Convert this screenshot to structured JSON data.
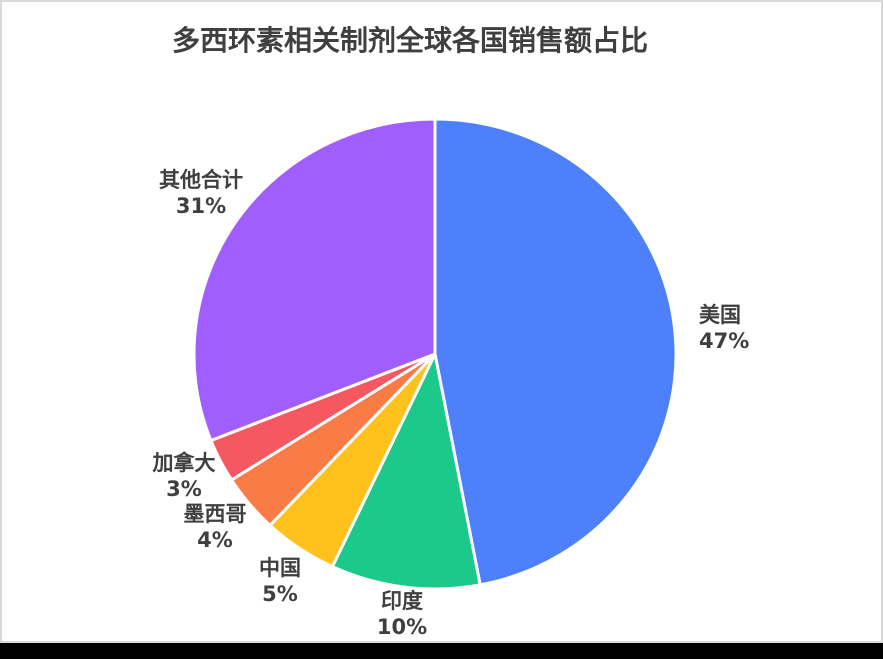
{
  "title": "多西环素相关制剂全球各国销售额占比",
  "colors": {
    "title_text": "#3f3f3f",
    "label_text": "#3f3f3f",
    "card_border": "#d9d9d9",
    "bottom_bar": "#000000",
    "background": "#ffffff",
    "slice_gap": "#ffffff"
  },
  "chart_data": {
    "type": "pie",
    "title": "多西环素相关制剂全球各国销售额占比",
    "direction": "clockwise",
    "start_angle_deg": 0,
    "legend_position": "none",
    "labels_position": "outside",
    "total": 100,
    "series": [
      {
        "name": "美国",
        "value": 47,
        "percent_label": "47%",
        "color": "#4d80fa"
      },
      {
        "name": "印度",
        "value": 10,
        "percent_label": "10%",
        "color": "#1bc98a"
      },
      {
        "name": "中国",
        "value": 5,
        "percent_label": "5%",
        "color": "#ffc21c"
      },
      {
        "name": "墨西哥",
        "value": 4,
        "percent_label": "4%",
        "color": "#f97b45"
      },
      {
        "name": "加拿大",
        "value": 3,
        "percent_label": "3%",
        "color": "#f65861"
      },
      {
        "name": "其他合计",
        "value": 31,
        "percent_label": "31%",
        "color": "#a05eff"
      }
    ]
  }
}
